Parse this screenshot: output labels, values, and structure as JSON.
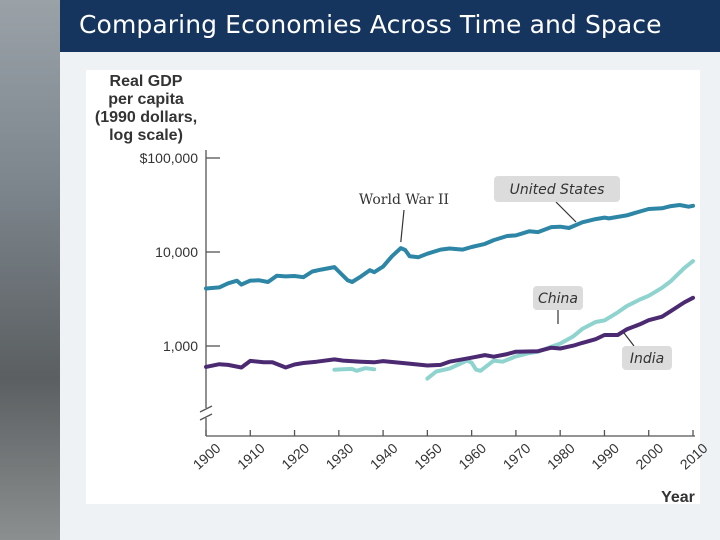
{
  "title": "Comparing Economies Across Time and Space",
  "colors": {
    "title_bar": "#15345e",
    "united_states": "#2e86a6",
    "china": "#8fd3cf",
    "india": "#4b2a72",
    "label_box": "#dcdcdc"
  },
  "chart_data": {
    "type": "line",
    "title": "",
    "ylabel": "Real GDP per capita (1990 dollars, log scale)",
    "ylabel_lines": [
      "Real GDP",
      "per capita",
      "(1990 dollars,",
      "log scale)"
    ],
    "xlabel": "Year",
    "yscale": "log",
    "ylim": [
      300,
      100000
    ],
    "xlim": [
      1900,
      2010
    ],
    "yticks": [
      {
        "value": 100000,
        "label": "$100,000"
      },
      {
        "value": 10000,
        "label": "10,000"
      },
      {
        "value": 1000,
        "label": "1,000"
      }
    ],
    "xticks": [
      "1900",
      "1910",
      "1920",
      "1930",
      "1940",
      "1950",
      "1960",
      "1970",
      "1980",
      "1990",
      "2000",
      "2010"
    ],
    "axis_break": true,
    "series": [
      {
        "name": "United States",
        "key": "united_states",
        "points": [
          [
            1900,
            4090
          ],
          [
            1903,
            4200
          ],
          [
            1905,
            4650
          ],
          [
            1907,
            4950
          ],
          [
            1908,
            4500
          ],
          [
            1910,
            4960
          ],
          [
            1912,
            5000
          ],
          [
            1914,
            4800
          ],
          [
            1916,
            5600
          ],
          [
            1918,
            5500
          ],
          [
            1920,
            5550
          ],
          [
            1922,
            5400
          ],
          [
            1924,
            6200
          ],
          [
            1926,
            6500
          ],
          [
            1929,
            6900
          ],
          [
            1930,
            6200
          ],
          [
            1932,
            5000
          ],
          [
            1933,
            4800
          ],
          [
            1935,
            5500
          ],
          [
            1937,
            6400
          ],
          [
            1938,
            6100
          ],
          [
            1940,
            7000
          ],
          [
            1942,
            9000
          ],
          [
            1944,
            11000
          ],
          [
            1945,
            10500
          ],
          [
            1946,
            9000
          ],
          [
            1948,
            8800
          ],
          [
            1950,
            9600
          ],
          [
            1953,
            10600
          ],
          [
            1955,
            10900
          ],
          [
            1958,
            10600
          ],
          [
            1960,
            11300
          ],
          [
            1963,
            12200
          ],
          [
            1965,
            13400
          ],
          [
            1968,
            14800
          ],
          [
            1970,
            15000
          ],
          [
            1973,
            16600
          ],
          [
            1975,
            16300
          ],
          [
            1978,
            18400
          ],
          [
            1980,
            18600
          ],
          [
            1982,
            18000
          ],
          [
            1985,
            20700
          ],
          [
            1988,
            22400
          ],
          [
            1990,
            23200
          ],
          [
            1991,
            22800
          ],
          [
            1995,
            24500
          ],
          [
            1998,
            27000
          ],
          [
            2000,
            28700
          ],
          [
            2003,
            29200
          ],
          [
            2005,
            30800
          ],
          [
            2007,
            31600
          ],
          [
            2009,
            30300
          ],
          [
            2010,
            31000
          ]
        ]
      },
      {
        "name": "China",
        "key": "china",
        "segments": [
          [
            [
              1929,
              560
            ],
            [
              1931,
              565
            ],
            [
              1933,
              570
            ],
            [
              1934,
              545
            ],
            [
              1936,
              580
            ],
            [
              1938,
              565
            ]
          ],
          [
            [
              1950,
              450
            ],
            [
              1952,
              535
            ],
            [
              1955,
              575
            ],
            [
              1957,
              635
            ],
            [
              1959,
              700
            ],
            [
              1960,
              665
            ],
            [
              1961,
              560
            ],
            [
              1962,
              545
            ],
            [
              1965,
              700
            ],
            [
              1967,
              680
            ],
            [
              1970,
              775
            ],
            [
              1973,
              840
            ],
            [
              1975,
              870
            ],
            [
              1978,
              980
            ],
            [
              1980,
              1060
            ],
            [
              1983,
              1270
            ],
            [
              1985,
              1520
            ],
            [
              1988,
              1800
            ],
            [
              1990,
              1870
            ],
            [
              1993,
              2280
            ],
            [
              1995,
              2650
            ],
            [
              1998,
              3120
            ],
            [
              2000,
              3420
            ],
            [
              2003,
              4160
            ],
            [
              2005,
              4900
            ],
            [
              2008,
              6730
            ],
            [
              2010,
              8000
            ]
          ]
        ]
      },
      {
        "name": "India",
        "key": "india",
        "points": [
          [
            1900,
            600
          ],
          [
            1903,
            640
          ],
          [
            1905,
            630
          ],
          [
            1908,
            590
          ],
          [
            1910,
            695
          ],
          [
            1913,
            670
          ],
          [
            1915,
            670
          ],
          [
            1918,
            590
          ],
          [
            1920,
            635
          ],
          [
            1922,
            660
          ],
          [
            1925,
            680
          ],
          [
            1929,
            720
          ],
          [
            1931,
            700
          ],
          [
            1935,
            680
          ],
          [
            1938,
            670
          ],
          [
            1940,
            690
          ],
          [
            1945,
            655
          ],
          [
            1950,
            620
          ],
          [
            1953,
            630
          ],
          [
            1955,
            680
          ],
          [
            1960,
            750
          ],
          [
            1963,
            800
          ],
          [
            1965,
            770
          ],
          [
            1968,
            820
          ],
          [
            1970,
            870
          ],
          [
            1975,
            880
          ],
          [
            1978,
            960
          ],
          [
            1980,
            940
          ],
          [
            1983,
            1010
          ],
          [
            1985,
            1080
          ],
          [
            1988,
            1180
          ],
          [
            1990,
            1310
          ],
          [
            1993,
            1310
          ],
          [
            1995,
            1500
          ],
          [
            1998,
            1700
          ],
          [
            2000,
            1880
          ],
          [
            2003,
            2050
          ],
          [
            2005,
            2350
          ],
          [
            2008,
            2900
          ],
          [
            2010,
            3260
          ]
        ]
      }
    ],
    "annotations": [
      {
        "text": "World War II",
        "x": 1944,
        "y": 11000
      }
    ],
    "series_labels": [
      {
        "text": "United States",
        "key": "united_states"
      },
      {
        "text": "China",
        "key": "china"
      },
      {
        "text": "India",
        "key": "india"
      }
    ]
  }
}
